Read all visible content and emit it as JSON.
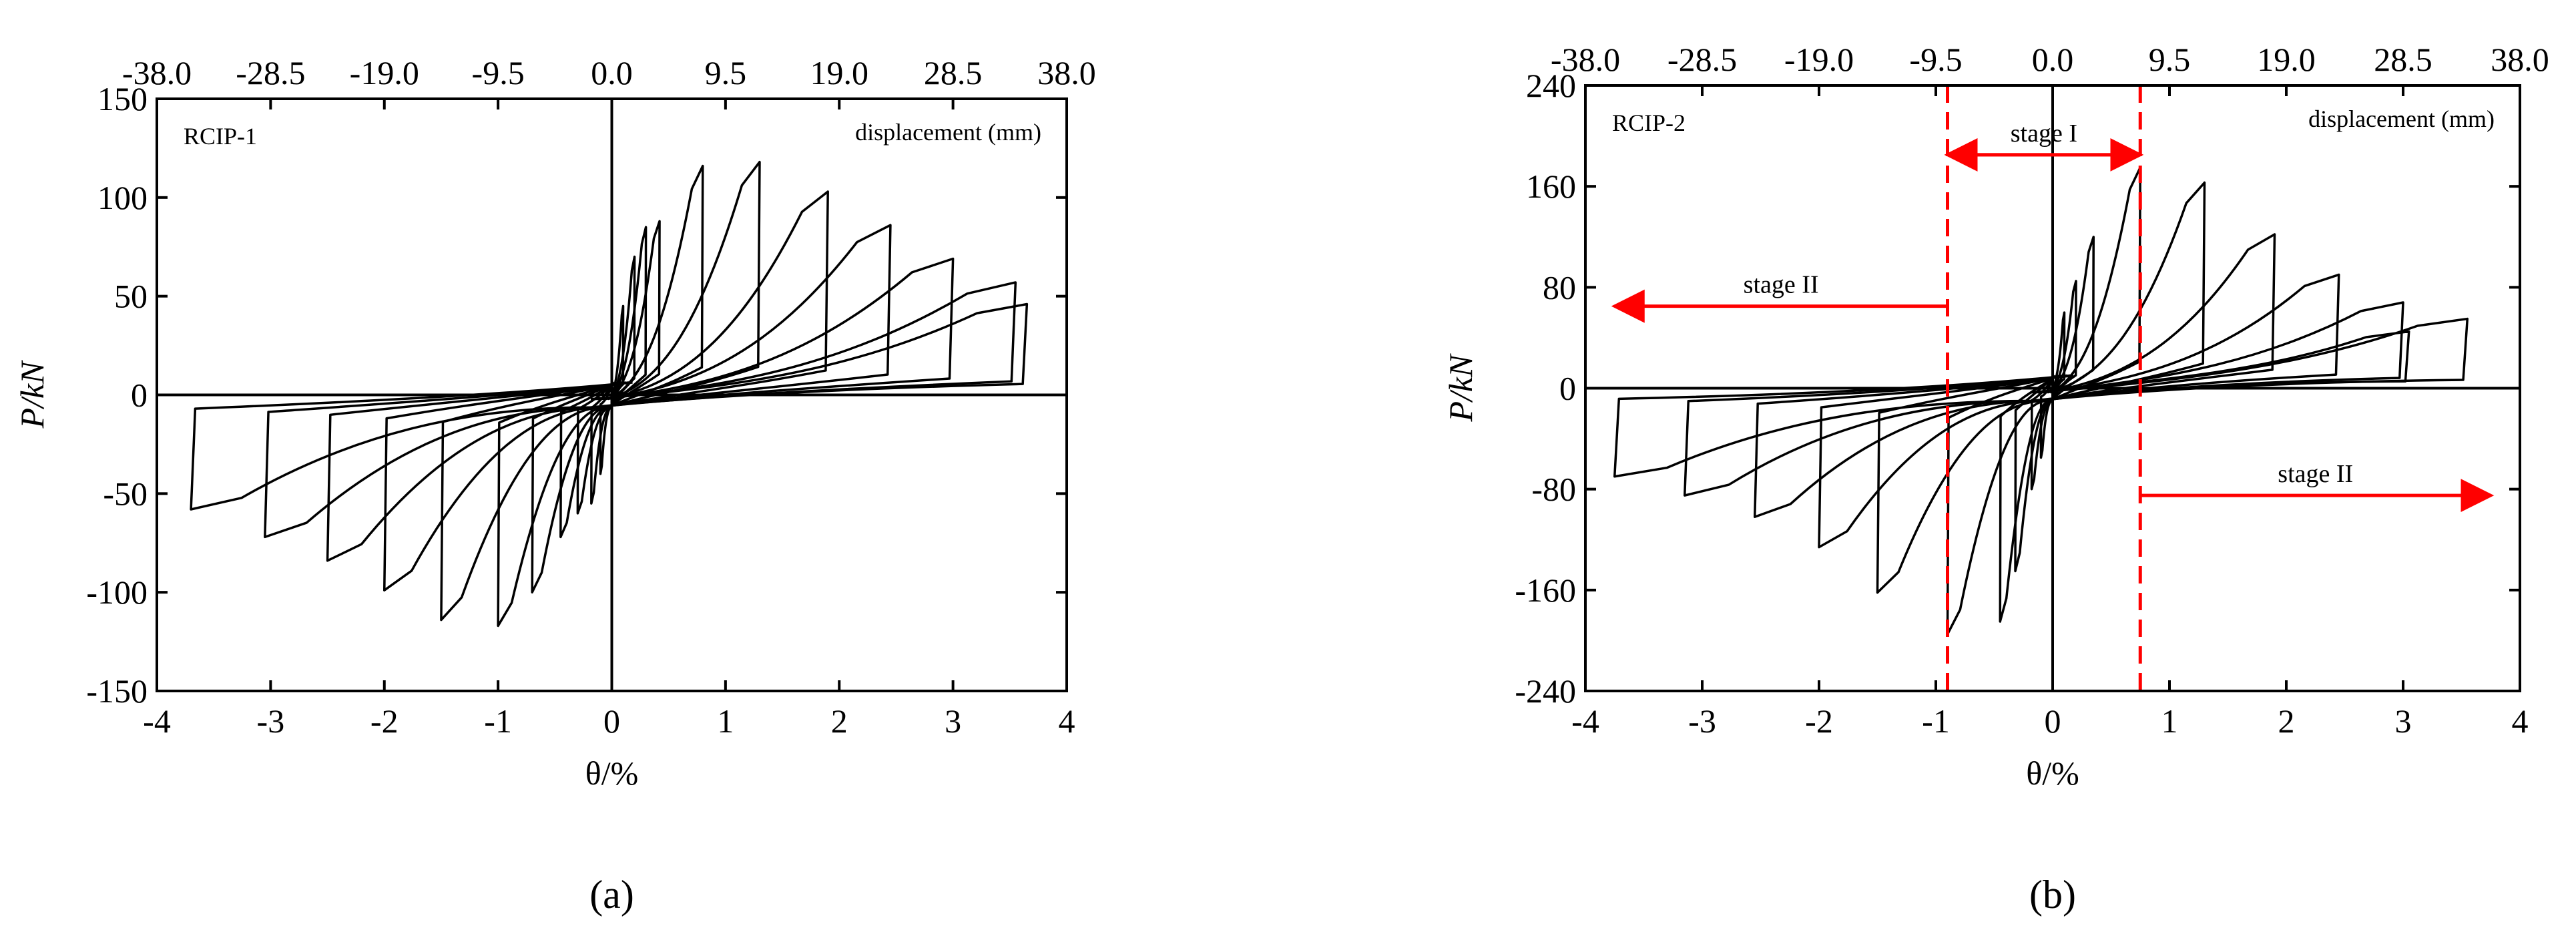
{
  "panels": [
    {
      "id": "a",
      "caption": "(a)",
      "specimen_label": "RCIP-1",
      "displacement_label": "displacement (mm)",
      "ylabel": "P/kN",
      "xlabel": "θ/%"
    },
    {
      "id": "b",
      "caption": "(b)",
      "specimen_label": "RCIP-2",
      "displacement_label": "displacement (mm)",
      "ylabel": "P/kN",
      "xlabel": "θ/%",
      "stage_annotations": [
        "stage I",
        "stage II",
        "stage II"
      ]
    }
  ],
  "chart_data": [
    {
      "type": "line",
      "title": "",
      "specimen": "RCIP-1",
      "xlabel": "θ/%",
      "ylabel": "P/kN",
      "top_axis_label": "displacement (mm)",
      "xlim": [
        -4,
        4
      ],
      "ylim": [
        -150,
        150
      ],
      "x_ticks": [
        -4,
        -3,
        -2,
        -1,
        0,
        1,
        2,
        3,
        4
      ],
      "y_ticks": [
        -150,
        -100,
        -50,
        0,
        50,
        100,
        150
      ],
      "top_ticks": [
        "-38.0",
        "-28.5",
        "-19.0",
        "-9.5",
        "0.0",
        "9.5",
        "19.0",
        "28.5",
        "38.0"
      ],
      "grid": false,
      "series_style": "hysteresis",
      "loops": [
        {
          "pos": [
            0.1,
            45
          ],
          "neg": [
            -0.1,
            -40
          ]
        },
        {
          "pos": [
            0.2,
            70
          ],
          "neg": [
            -0.18,
            -55
          ]
        },
        {
          "pos": [
            0.3,
            85
          ],
          "neg": [
            -0.3,
            -60
          ]
        },
        {
          "pos": [
            0.42,
            88
          ],
          "neg": [
            -0.45,
            -72
          ]
        },
        {
          "pos": [
            0.8,
            116
          ],
          "neg": [
            -0.7,
            -100
          ]
        },
        {
          "pos": [
            1.3,
            118
          ],
          "neg": [
            -1.0,
            -117
          ]
        },
        {
          "pos": [
            1.9,
            103
          ],
          "neg": [
            -1.5,
            -114
          ]
        },
        {
          "pos": [
            2.45,
            86
          ],
          "neg": [
            -2.0,
            -99
          ]
        },
        {
          "pos": [
            3.0,
            69
          ],
          "neg": [
            -2.5,
            -84
          ]
        },
        {
          "pos": [
            3.55,
            57
          ],
          "neg": [
            -3.05,
            -72
          ]
        },
        {
          "pos": [
            3.65,
            46
          ],
          "neg": [
            -3.7,
            -58
          ]
        }
      ]
    },
    {
      "type": "line",
      "title": "",
      "specimen": "RCIP-2",
      "xlabel": "θ/%",
      "ylabel": "P/kN",
      "top_axis_label": "displacement (mm)",
      "xlim": [
        -4,
        4
      ],
      "ylim": [
        -240,
        240
      ],
      "x_ticks": [
        -4,
        -3,
        -2,
        -1,
        0,
        1,
        2,
        3,
        4
      ],
      "y_ticks": [
        -240,
        -160,
        -80,
        0,
        80,
        160,
        240
      ],
      "top_ticks": [
        "-38.0",
        "-28.5",
        "-19.0",
        "-9.5",
        "0.0",
        "9.5",
        "19.0",
        "28.5",
        "38.0"
      ],
      "grid": false,
      "series_style": "hysteresis",
      "loops": [
        {
          "pos": [
            0.1,
            60
          ],
          "neg": [
            -0.1,
            -55
          ]
        },
        {
          "pos": [
            0.2,
            85
          ],
          "neg": [
            -0.18,
            -80
          ]
        },
        {
          "pos": [
            0.35,
            120
          ],
          "neg": [
            -0.32,
            -145
          ]
        },
        {
          "pos": [
            0.75,
            175
          ],
          "neg": [
            -0.45,
            -185
          ]
        },
        {
          "pos": [
            1.3,
            163
          ],
          "neg": [
            -0.9,
            -195
          ]
        },
        {
          "pos": [
            1.9,
            122
          ],
          "neg": [
            -1.5,
            -162
          ]
        },
        {
          "pos": [
            2.45,
            90
          ],
          "neg": [
            -2.0,
            -126
          ]
        },
        {
          "pos": [
            3.0,
            68
          ],
          "neg": [
            -2.55,
            -102
          ]
        },
        {
          "pos": [
            3.55,
            55
          ],
          "neg": [
            -3.15,
            -85
          ]
        },
        {
          "pos": [
            3.05,
            45
          ],
          "neg": [
            -3.75,
            -70
          ]
        }
      ],
      "annotations": [
        {
          "text": "stage I",
          "x_from": -0.9,
          "x_to": 0.75,
          "y": 185
        },
        {
          "text": "stage II",
          "x_from": -0.9,
          "x_to": -3.75,
          "y": 65
        },
        {
          "text": "stage II",
          "x_from": 0.75,
          "x_to": 3.75,
          "y": -85
        }
      ],
      "reference_lines_x": [
        -0.9,
        0.75
      ],
      "reference_line_color": "#ff0000"
    }
  ],
  "colors": {
    "curve": "#000000",
    "annotation": "#ff0000",
    "background": "#ffffff"
  }
}
